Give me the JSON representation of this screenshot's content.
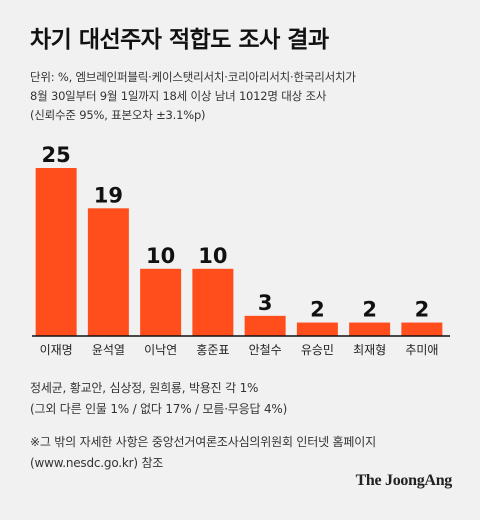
{
  "header": {
    "title": "차기 대선주자 적합도 조사 결과",
    "subtitle_lines": [
      "단위: %,  엠브레인퍼블릭·케이스탯리서치·코리아리서치·한국리서치가",
      "8월 30일부터 9월 1일까지 18세 이상 남녀 1012명 대상 조사",
      "(신뢰수준 95%, 표본오차 ±3.1%p)"
    ]
  },
  "chart_data": {
    "type": "bar",
    "categories": [
      "이재명",
      "윤석열",
      "이낙연",
      "홍준표",
      "안철수",
      "유승민",
      "최재형",
      "추미애"
    ],
    "values": [
      25,
      19,
      10,
      10,
      3,
      2,
      2,
      2
    ],
    "title": "차기 대선주자 적합도 조사 결과",
    "unit": "%",
    "ylim": [
      0,
      25
    ],
    "grid": false,
    "bar_color": "#ff4d1c"
  },
  "notes": {
    "line1": "정세균, 황교안, 심상정, 원희룡, 박용진 각 1%",
    "line2": "(그외 다른 인물 1% / 없다 17% / 모름·무응답 4%)"
  },
  "footnote": {
    "line1": "※그 밖의 자세한 사항은 중앙선거여론조사심의위원회 인터넷 홈페이지",
    "line2": "(www.nesdc.go.kr) 참조"
  },
  "brand": "The JoongAng"
}
